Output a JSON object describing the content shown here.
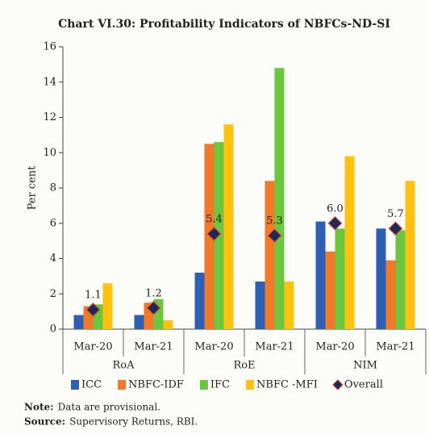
{
  "chart_data": {
    "type": "bar",
    "title": "Chart VI.30: Profitability Indicators of NBFCs-ND-SI",
    "ylabel": "Per cent",
    "categories": [
      "Mar-20",
      "Mar-21",
      "Mar-20",
      "Mar-21",
      "Mar-20",
      "Mar-21"
    ],
    "groups": [
      "RoA",
      "RoE",
      "NIM"
    ],
    "ylim": [
      0,
      16
    ],
    "yticks": [
      0,
      2,
      4,
      6,
      8,
      10,
      12,
      14,
      16
    ],
    "series": [
      {
        "name": "ICC",
        "color": "#2e5fb4",
        "values": [
          0.8,
          0.8,
          3.2,
          2.7,
          6.1,
          5.7
        ]
      },
      {
        "name": "NBFC-IDF",
        "color": "#f07a28",
        "values": [
          1.3,
          1.5,
          10.5,
          8.4,
          4.4,
          3.9
        ]
      },
      {
        "name": "IFC",
        "color": "#6cc63e",
        "values": [
          1.4,
          1.7,
          10.6,
          14.8,
          5.7,
          5.6
        ]
      },
      {
        "name": "NBFC -MFI",
        "color": "#ffc20e",
        "values": [
          2.6,
          0.5,
          11.6,
          2.7,
          9.8,
          8.4
        ]
      },
      {
        "name": "Overall",
        "color": "#1a2a5a",
        "marker": "diamond",
        "values": [
          1.1,
          1.2,
          5.4,
          5.3,
          6.0,
          5.7
        ],
        "value_labels": [
          "1.1",
          "1.2",
          "5.4",
          "5.3",
          "6.0",
          "5.7"
        ]
      }
    ],
    "notes": [
      {
        "label": "Note:",
        "text": "Data are provisional."
      },
      {
        "label": "Source:",
        "text": "Supervisory Returns, RBI."
      }
    ]
  }
}
